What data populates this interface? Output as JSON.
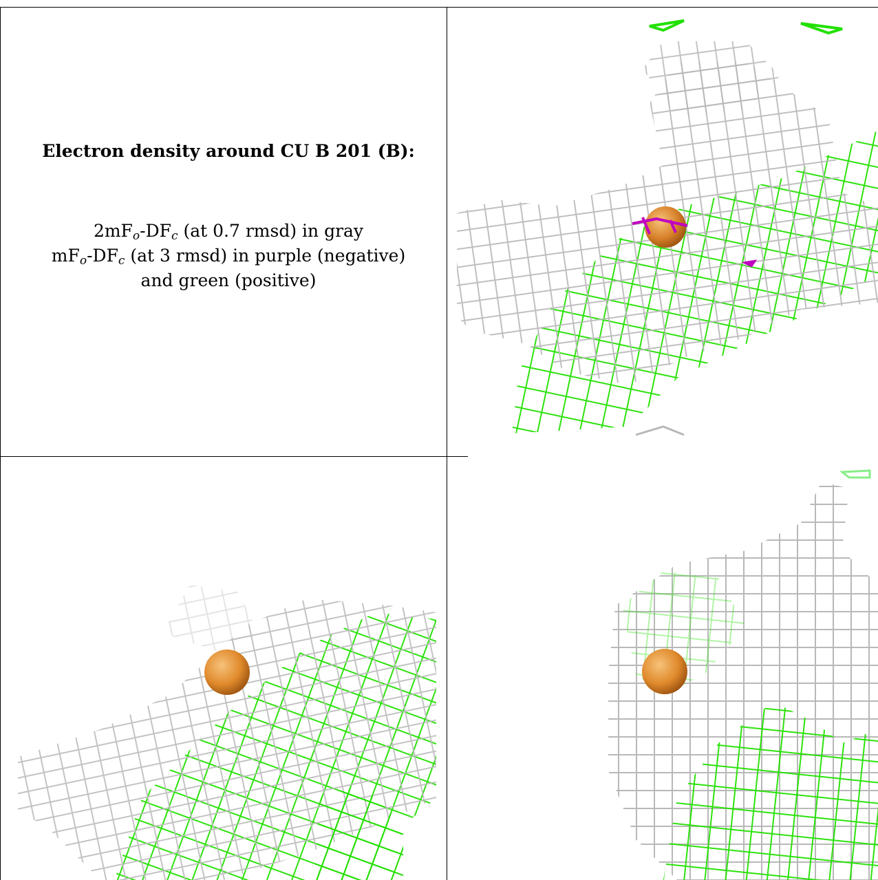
{
  "caption": {
    "title": "Electron density around CU B 201 (B):",
    "line1_prefix": "2mF",
    "line1_sub1": "o",
    "line1_mid": "-DF",
    "line1_sub2": "c",
    "line1_suffix": " (at 0.7 rmsd) in gray",
    "line2_prefix": "mF",
    "line2_sub1": "o",
    "line2_mid": "-DF",
    "line2_sub2": "c",
    "line2_suffix": " (at 3 rmsd) in purple (negative)",
    "line3": "and green (positive)"
  },
  "colors": {
    "gray_mesh": "#b4b4b4",
    "dark_mesh": "#6e6e6e",
    "green_mesh": "#22e000",
    "purple_mesh": "#c000c0",
    "copper_atom": "#e08a2c"
  },
  "panels": [
    {
      "id": "view-1",
      "label": "view top-right",
      "atom": "CU B 201"
    },
    {
      "id": "view-2",
      "label": "view bottom-left",
      "atom": "CU B 201"
    },
    {
      "id": "view-3",
      "label": "view bottom-right",
      "atom": "CU B 201"
    }
  ]
}
